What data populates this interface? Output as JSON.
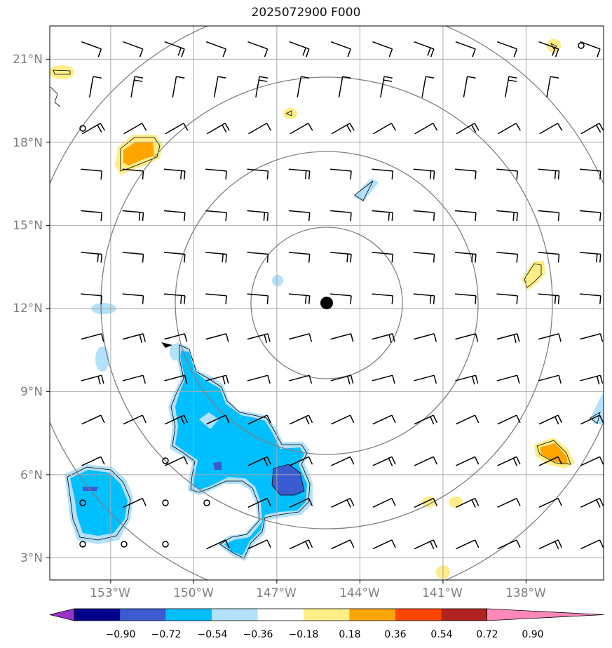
{
  "title": "2025072900 F000",
  "lat_ticks": [
    "21°N",
    "18°N",
    "15°N",
    "12°N",
    "9°N",
    "6°N",
    "3°N"
  ],
  "lon_ticks": [
    "153°W",
    "150°W",
    "147°W",
    "144°W",
    "141°W",
    "138°W"
  ],
  "colorbar": {
    "labels": [
      "−0.90",
      "−0.72",
      "−0.54",
      "−0.36",
      "−0.18",
      "0.18",
      "0.36",
      "0.54",
      "0.72",
      "0.90"
    ],
    "colors": [
      "#9932cc",
      "#00008b",
      "#3b5bd1",
      "#00bfff",
      "#b3e0fa",
      "#ffffff",
      "#ffee88",
      "#ffa500",
      "#ff4500",
      "#b22222",
      "#ff88bb"
    ]
  },
  "storm_center": {
    "lat": 12.2,
    "lon": -145.2
  },
  "fill_colors": {
    "light_blue": "#b3e0fa",
    "deep_sky_blue": "#00bfff",
    "royal_blue": "#3b5bd1",
    "light_yellow": "#ffee88",
    "orange": "#ffa500"
  }
}
